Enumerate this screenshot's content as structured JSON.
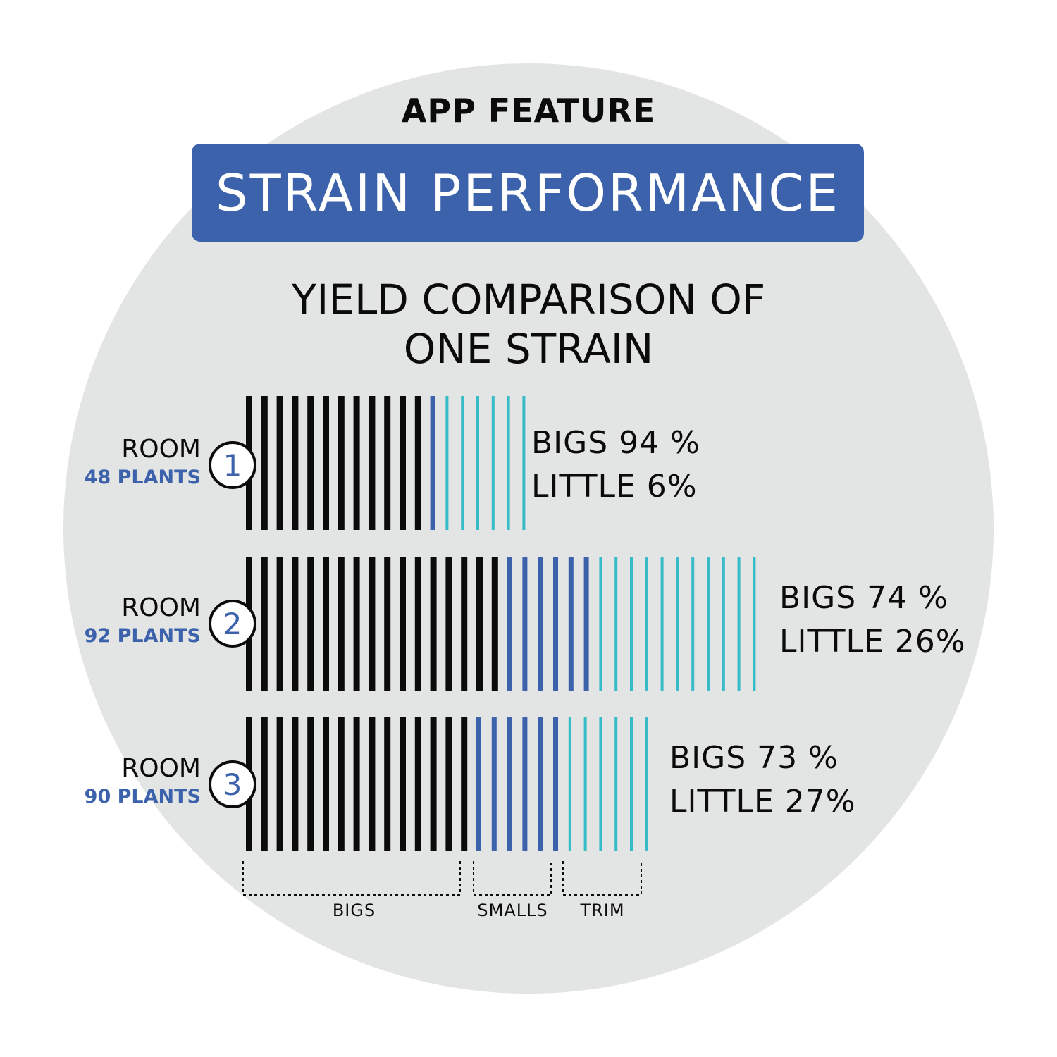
{
  "header": {
    "kicker": "APP FEATURE",
    "banner": "STRAIN PERFORMANCE",
    "subtitle_line1": "YIELD COMPARISON OF",
    "subtitle_line2": "ONE STRAIN"
  },
  "colors": {
    "background_circle": "#e3e4e4",
    "banner": "#3c62ac",
    "bigs": "#0b0b0b",
    "smalls": "#3c62ac",
    "trim": "#35bcc7"
  },
  "rooms": [
    {
      "room_label": "ROOM",
      "number": "1",
      "plants": "48 PLANTS",
      "bigs_text": "BIGS 94 %",
      "little_text": "LITTLE 6%",
      "bars": {
        "bigs": 12,
        "smalls": 1,
        "trim": 6
      }
    },
    {
      "room_label": "ROOM",
      "number": "2",
      "plants": "92 PLANTS",
      "bigs_text": "BIGS 74 %",
      "little_text": "LITTLE 26%",
      "bars": {
        "bigs": 17,
        "smalls": 6,
        "trim": 11
      }
    },
    {
      "room_label": "ROOM",
      "number": "3",
      "plants": "90 PLANTS",
      "bigs_text": "BIGS 73 %",
      "little_text": "LITTLE 27%",
      "bars": {
        "bigs": 15,
        "smalls": 6,
        "trim": 6
      }
    }
  ],
  "legend": {
    "bigs": "BIGS",
    "smalls": "SMALLS",
    "trim": "TRIM"
  }
}
